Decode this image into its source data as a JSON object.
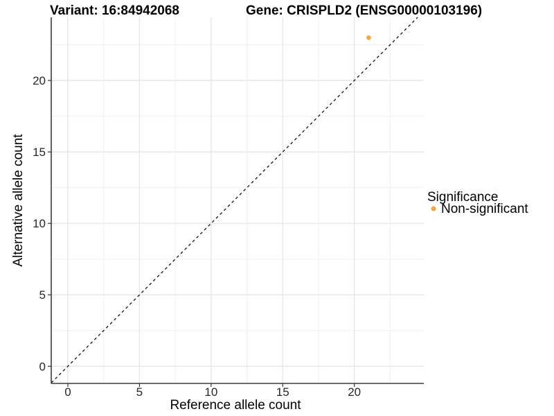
{
  "chart_data": {
    "type": "scatter",
    "title_left": "Variant: 16:84942068",
    "title_right": "Gene: CRISPLD2 (ENSG00000103196)",
    "xlabel": "Reference allele count",
    "ylabel": "Alternative allele count",
    "xlim": [
      -1.16,
      24.85
    ],
    "ylim": [
      -1.2,
      24.42
    ],
    "x_ticks": [
      0,
      5,
      10,
      15,
      20
    ],
    "y_ticks": [
      0,
      5,
      10,
      15,
      20
    ],
    "grid": "major+minor",
    "legend_position": "right",
    "identity_line": {
      "slope": 1,
      "intercept": 0,
      "style": "dashed",
      "color": "#111111"
    },
    "series": [
      {
        "name": "Non-significant",
        "color": "#F9A442",
        "points": [
          {
            "x": 21,
            "y": 23
          }
        ]
      }
    ],
    "legend": {
      "title": "Significance",
      "entries": [
        {
          "label": "Non-significant",
          "color": "#F9A442"
        }
      ]
    },
    "colors": {
      "grid_major": "#E3E3E3",
      "grid_minor": "#F0F0F0",
      "axis_line": "#3A3A3A",
      "tick_mark": "#333333",
      "background": "#FFFFFF"
    }
  }
}
